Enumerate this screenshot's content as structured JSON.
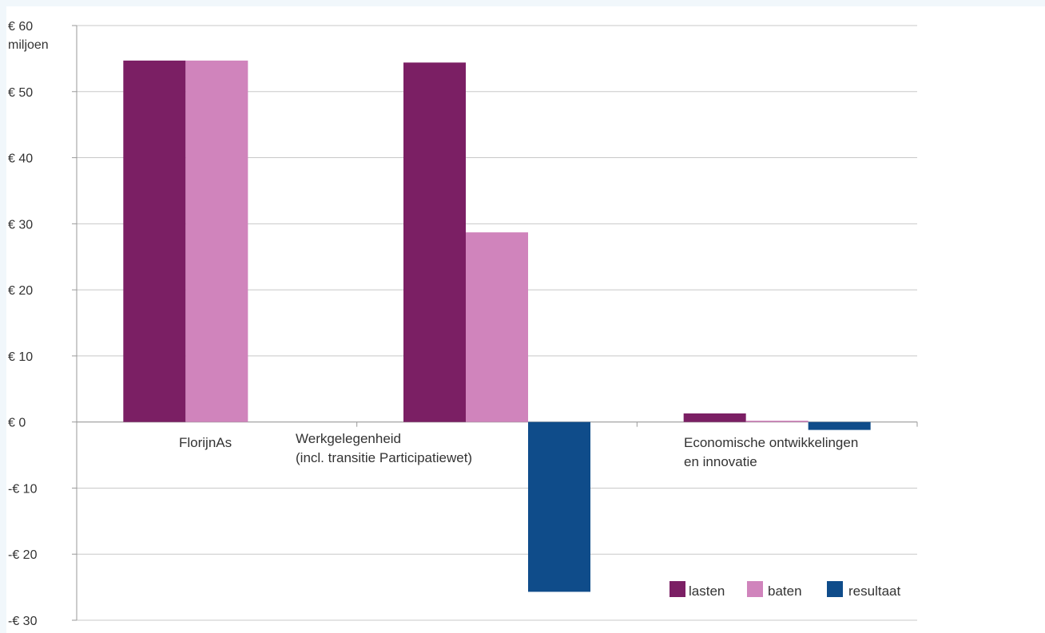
{
  "chart_data": {
    "type": "bar",
    "y_unit_top": "miljoen",
    "categories": [
      [
        "FlorijnAs"
      ],
      [
        "Werkgelegenheid",
        "(incl. transitie Participatiewet)"
      ],
      [
        "Economische ontwikkelingen",
        "en innovatie"
      ]
    ],
    "series": [
      {
        "name": "lasten",
        "color": "#7b1f64",
        "values": [
          54.7,
          54.4,
          1.3
        ]
      },
      {
        "name": "baten",
        "color": "#d084bc",
        "values": [
          54.7,
          28.7,
          0.2
        ]
      },
      {
        "name": "resultaat",
        "color": "#0f4c8a",
        "values": [
          0,
          -25.7,
          -1.2
        ]
      }
    ],
    "y_ticks": [
      60,
      50,
      40,
      30,
      20,
      10,
      0,
      -10,
      -20,
      -30
    ],
    "y_tick_labels": [
      "€ 60",
      "€ 50",
      "€ 40",
      "€ 30",
      "€ 20",
      "€ 10",
      "€ 0",
      "-€ 10",
      "-€ 20",
      "-€ 30"
    ],
    "ylim": [
      -30,
      60
    ],
    "grid": true,
    "legend_position": "bottom-right"
  }
}
